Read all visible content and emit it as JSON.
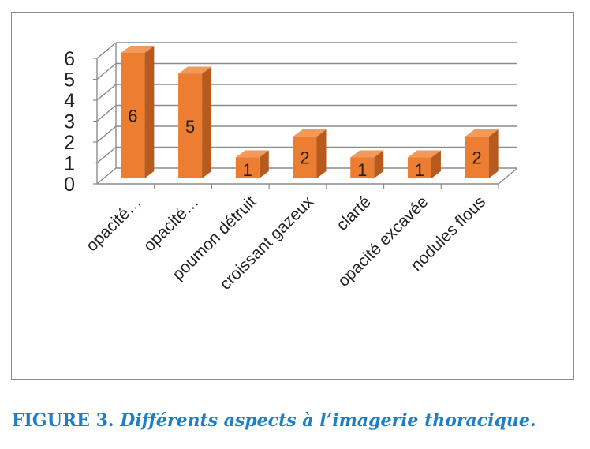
{
  "chart_data": {
    "type": "bar",
    "categories": [
      "opacité…",
      "opacité…",
      "poumon détruit",
      "croissant gazeux",
      "clarté",
      "opacité excavée",
      "nodules flous"
    ],
    "values": [
      6,
      5,
      1,
      2,
      1,
      1,
      2
    ],
    "yticks": [
      "0",
      "1",
      "2",
      "3",
      "4",
      "5",
      "6"
    ],
    "ylim": [
      0,
      6
    ],
    "grid": true,
    "legend": "none",
    "bar_color": "#ed7d31",
    "bar_top_color": "#f19a5c",
    "bar_side_color": "#b65a1d",
    "three_d": true
  },
  "caption": {
    "label": "FIGURE 3.",
    "text": "Différents aspects à l’imagerie thoracique.",
    "color": "#1f7fc4"
  }
}
